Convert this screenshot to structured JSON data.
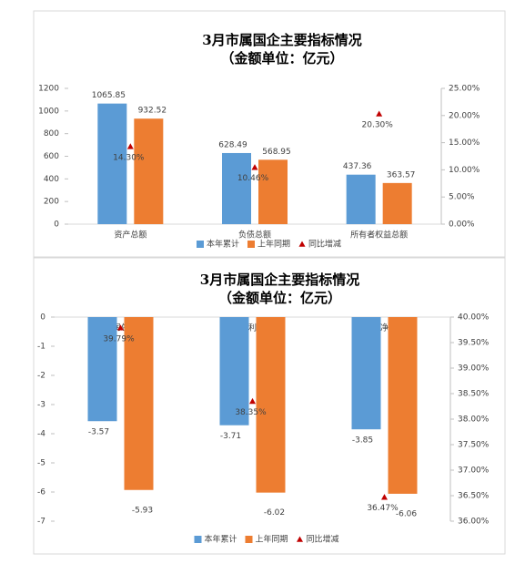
{
  "chart_data": [
    {
      "type": "bar",
      "title": "3月市属国企主要指标情况",
      "subtitle": "（金额单位：亿元）",
      "categories": [
        "资产总额",
        "负债总额",
        "所有者权益总额"
      ],
      "series": [
        {
          "name": "本年累计",
          "color": "#5b9bd5",
          "values": [
            1065.85,
            628.49,
            437.36
          ]
        },
        {
          "name": "上年同期",
          "color": "#ed7d31",
          "values": [
            932.52,
            568.95,
            363.57
          ]
        },
        {
          "name": "同比增减",
          "color": "#c00000",
          "type": "scatter",
          "axis": "y2",
          "values": [
            14.3,
            10.46,
            20.3
          ],
          "value_labels": [
            "14.30%",
            "10.46%",
            "20.30%"
          ]
        }
      ],
      "ylim": [
        0,
        1200
      ],
      "yticks": [
        0,
        200,
        400,
        600,
        800,
        1000,
        1200
      ],
      "y2lim": [
        0,
        25
      ],
      "y2ticks": [
        {
          "value": 0,
          "label": "0.00%"
        },
        {
          "value": 5,
          "label": "5.00%"
        },
        {
          "value": 10,
          "label": "10.00%"
        },
        {
          "value": 15,
          "label": "15.00%"
        },
        {
          "value": 20,
          "label": "20.00%"
        },
        {
          "value": 25,
          "label": "25.00%"
        }
      ],
      "legend": "bottom"
    },
    {
      "type": "bar",
      "title": "3月市属国企主要指标情况",
      "subtitle": "（金额单位：亿元）",
      "categories": [
        "利润总额",
        "净利润",
        "归母净利润"
      ],
      "series": [
        {
          "name": "本年累计",
          "color": "#5b9bd5",
          "values": [
            -3.57,
            -3.71,
            -3.85
          ]
        },
        {
          "name": "上年同期",
          "color": "#ed7d31",
          "values": [
            -5.93,
            -6.02,
            -6.06
          ]
        },
        {
          "name": "同比增减",
          "color": "#c00000",
          "type": "scatter",
          "axis": "y2",
          "values": [
            39.79,
            38.35,
            36.47
          ],
          "value_labels": [
            "39.79%",
            "38.35%",
            "36.47%"
          ]
        }
      ],
      "ylim": [
        -7,
        0
      ],
      "yticks": [
        -7,
        -6,
        -5,
        -4,
        -3,
        -2,
        -1,
        0
      ],
      "y2lim": [
        36,
        40
      ],
      "y2ticks": [
        {
          "value": 36,
          "label": "36.00%"
        },
        {
          "value": 36.5,
          "label": "36.50%"
        },
        {
          "value": 37,
          "label": "37.00%"
        },
        {
          "value": 37.5,
          "label": "37.50%"
        },
        {
          "value": 38,
          "label": "38.00%"
        },
        {
          "value": 38.5,
          "label": "38.50%"
        },
        {
          "value": 39,
          "label": "39.00%"
        },
        {
          "value": 39.5,
          "label": "39.50%"
        },
        {
          "value": 40,
          "label": "40.00%"
        }
      ],
      "legend": "bottom"
    }
  ]
}
